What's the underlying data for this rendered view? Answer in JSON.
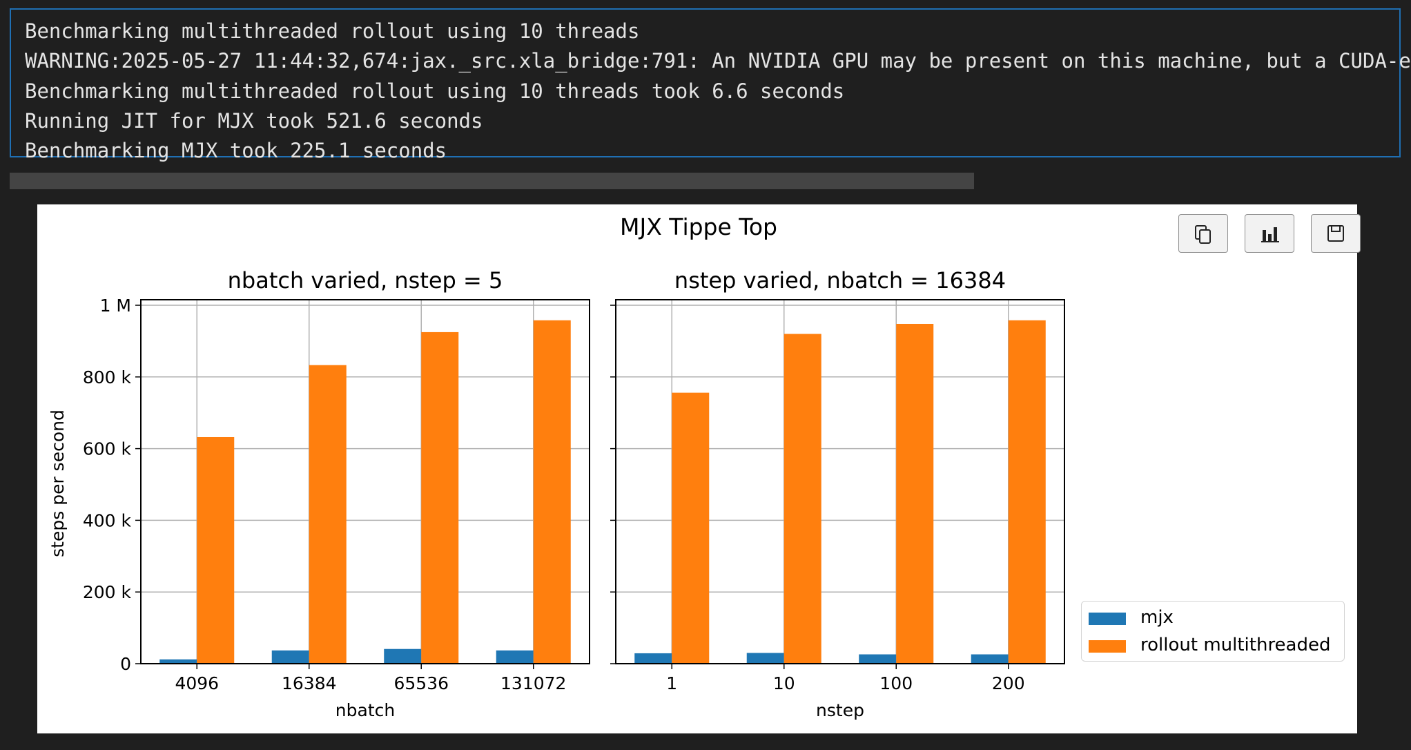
{
  "console": {
    "lines": [
      "Benchmarking multithreaded rollout using 10 threads",
      "WARNING:2025-05-27 11:44:32,674:jax._src.xla_bridge:791: An NVIDIA GPU may be present on this machine, but a CUDA-e",
      "Benchmarking multithreaded rollout using 10 threads took 6.6 seconds",
      "Running JIT for MJX took 521.6 seconds",
      "Benchmarking MJX took 225.1 seconds"
    ]
  },
  "toolbar": {
    "copy_icon": "copy-icon",
    "chart_icon": "bar-chart-icon",
    "save_icon": "save-icon"
  },
  "colors": {
    "mjx": "#1f77b4",
    "rollout": "#ff7f0e",
    "console_border": "#1f6fb3",
    "background": "#1f1f1f"
  },
  "chart_data": {
    "type": "bar",
    "suptitle": "MJX Tippe Top",
    "ylabel": "steps per second",
    "ylim": [
      0,
      1000000
    ],
    "yticks": [
      0,
      200000,
      400000,
      600000,
      800000,
      1000000
    ],
    "ytick_labels": [
      "0",
      "200 k",
      "400 k",
      "600 k",
      "800 k",
      "1 M"
    ],
    "grid": true,
    "legend": {
      "placement": "lower-right-outside",
      "entries": [
        "mjx",
        "rollout multithreaded"
      ]
    },
    "panels": [
      {
        "title": "nbatch varied, nstep = 5",
        "xlabel": "nbatch",
        "categories": [
          "4096",
          "16384",
          "65536",
          "131072"
        ],
        "series": [
          {
            "name": "mjx",
            "values": [
              12000,
              37000,
              41000,
              37000
            ]
          },
          {
            "name": "rollout multithreaded",
            "values": [
              632000,
              833000,
              925000,
              958000
            ]
          }
        ]
      },
      {
        "title": "nstep varied, nbatch = 16384",
        "xlabel": "nstep",
        "categories": [
          "1",
          "10",
          "100",
          "200"
        ],
        "series": [
          {
            "name": "mjx",
            "values": [
              29000,
              30000,
              26000,
              26000
            ]
          },
          {
            "name": "rollout multithreaded",
            "values": [
              756000,
              920000,
              948000,
              958000
            ]
          }
        ]
      }
    ]
  }
}
